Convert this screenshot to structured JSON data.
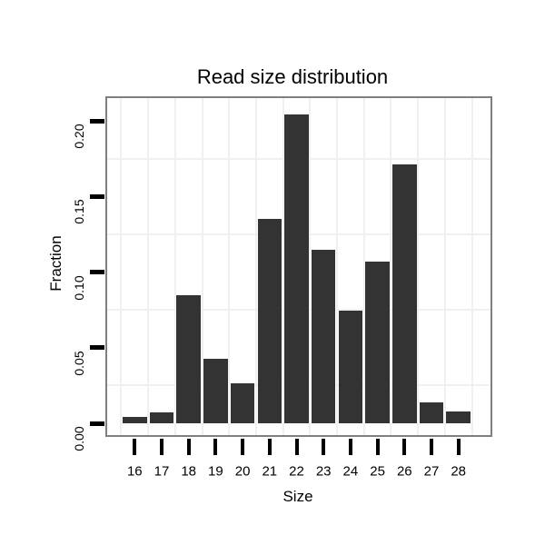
{
  "chart_data": {
    "type": "bar",
    "title": "Read size distribution",
    "xlabel": "Size",
    "ylabel": "Fraction",
    "categories": [
      "16",
      "17",
      "18",
      "19",
      "20",
      "21",
      "22",
      "23",
      "24",
      "25",
      "26",
      "27",
      "28"
    ],
    "values": [
      0.0045,
      0.0075,
      0.0845,
      0.0425,
      0.0265,
      0.135,
      0.2045,
      0.115,
      0.0745,
      0.107,
      0.171,
      0.014,
      0.008
    ],
    "y_ticks": [
      0.0,
      0.05,
      0.1,
      0.15,
      0.2
    ],
    "y_tick_labels": [
      "0.00",
      "0.05",
      "0.10",
      "0.15",
      "0.20"
    ],
    "y_tick_label_rotation_deg": 90,
    "ylim": [
      0,
      0.2156
    ],
    "minor_gridlines_y": [
      0.025,
      0.075,
      0.125,
      0.175
    ],
    "vertical_gridlines": "between-categories",
    "grid": "minor-only",
    "legend": "none",
    "bar_color": "#333333",
    "panel_border_color": "#7f7f7f",
    "gridline_color": "#f0f0f0",
    "tick_color": "#000000",
    "text_color": "#000000",
    "background_color": "#ffffff"
  }
}
